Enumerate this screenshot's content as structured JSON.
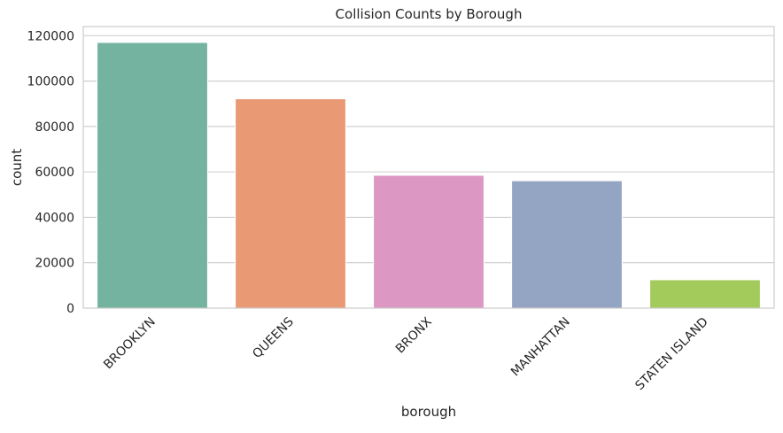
{
  "chart_data": {
    "type": "bar",
    "title": "Collision Counts by Borough",
    "xlabel": "borough",
    "ylabel": "count",
    "categories": [
      "BROOKLYN",
      "QUEENS",
      "BRONX",
      "MANHATTAN",
      "STATEN ISLAND"
    ],
    "values": [
      117000,
      92200,
      58500,
      56100,
      12500
    ],
    "colors": [
      "#73b3a0",
      "#e99a75",
      "#dc97c2",
      "#94a4c3",
      "#a3cb5c"
    ],
    "ylim": [
      0,
      124000
    ],
    "yticks": [
      0,
      20000,
      40000,
      60000,
      80000,
      100000,
      120000
    ],
    "ytick_labels": [
      "0",
      "20000",
      "40000",
      "60000",
      "80000",
      "100000",
      "120000"
    ],
    "grid": true,
    "xtick_rotation_deg": 45
  }
}
